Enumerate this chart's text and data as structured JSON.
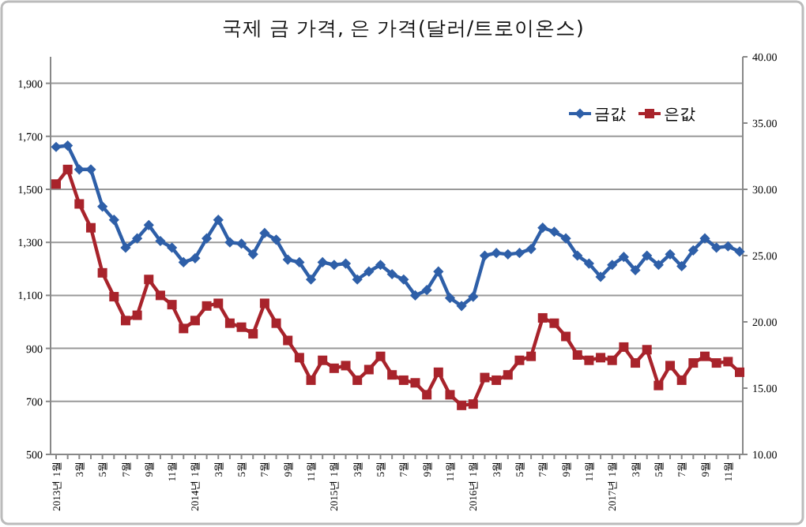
{
  "chart_data": {
    "type": "line",
    "title": "국제 금 가격, 은 가격(달러/트로이온스)",
    "categories": [
      "2013년 1월",
      null,
      "3월",
      null,
      "5월",
      null,
      "7월",
      null,
      "9월",
      null,
      "11월",
      null,
      "2014년 1월",
      null,
      "3월",
      null,
      "5월",
      null,
      "7월",
      null,
      "9월",
      null,
      "11월",
      null,
      "2015년 1월",
      null,
      "3월",
      null,
      "5월",
      null,
      "7월",
      null,
      "9월",
      null,
      "11월",
      null,
      "2016년 1월",
      null,
      "3월",
      null,
      "5월",
      null,
      "7월",
      null,
      "9월",
      null,
      "11월",
      null,
      "2017년 1월",
      null,
      "3월",
      null,
      "5월",
      null,
      "7월",
      null,
      "9월",
      null,
      "11월",
      null
    ],
    "series": [
      {
        "name": "금값",
        "color": "#2e5fa8",
        "marker": "diamond",
        "values": [
          1660,
          1665,
          1575,
          1575,
          1435,
          1385,
          1280,
          1315,
          1365,
          1305,
          1280,
          1225,
          1240,
          1315,
          1385,
          1300,
          1295,
          1255,
          1335,
          1310,
          1235,
          1225,
          1160,
          1225,
          1215,
          1220,
          1160,
          1190,
          1215,
          1180,
          1160,
          1100,
          1120,
          1190,
          1090,
          1060,
          1095,
          1250,
          1260,
          1255,
          1260,
          1275,
          1355,
          1340,
          1315,
          1250,
          1220,
          1170,
          1215,
          1245,
          1195,
          1250,
          1215,
          1255,
          1210,
          1270,
          1315,
          1280,
          1285,
          1265
        ]
      },
      {
        "name": "은값",
        "color": "#a8232b",
        "marker": "square",
        "axis": "y2",
        "values": [
          30.4,
          31.5,
          28.9,
          27.1,
          23.7,
          21.9,
          20.1,
          20.5,
          23.2,
          22.0,
          21.3,
          19.5,
          20.1,
          21.2,
          21.4,
          19.9,
          19.6,
          19.1,
          21.4,
          19.9,
          18.6,
          17.3,
          15.6,
          17.1,
          16.5,
          16.7,
          15.6,
          16.4,
          17.4,
          16.0,
          15.6,
          15.4,
          14.5,
          16.2,
          14.5,
          13.7,
          13.8,
          15.8,
          15.6,
          16.0,
          17.1,
          17.4,
          20.3,
          19.9,
          18.9,
          17.5,
          17.1,
          17.3,
          17.1,
          18.1,
          16.9,
          17.9,
          15.2,
          16.7,
          15.6,
          16.9,
          17.4,
          16.9,
          17.0,
          16.2
        ]
      }
    ],
    "ylim": [
      500,
      2000
    ],
    "yticks": [
      500,
      700,
      900,
      {
        "value": 1100,
        "label": "1,100"
      },
      {
        "value": 1300,
        "label": "1,300"
      },
      {
        "value": 1500,
        "label": "1,500"
      },
      {
        "value": 1700,
        "label": "1,700"
      },
      {
        "value": 1900,
        "label": "1,900"
      }
    ],
    "y2lim": [
      10,
      40
    ],
    "y2ticks": [
      {
        "value": 10,
        "label": "10.00"
      },
      {
        "value": 15,
        "label": "15.00"
      },
      {
        "value": 20,
        "label": "20.00"
      },
      {
        "value": 25,
        "label": "25.00"
      },
      {
        "value": 30,
        "label": "30.00"
      },
      {
        "value": 35,
        "label": "35.00"
      },
      {
        "value": 40,
        "label": "40.00"
      }
    ],
    "grid": "y",
    "legend": "top right",
    "line_style": "solid"
  }
}
